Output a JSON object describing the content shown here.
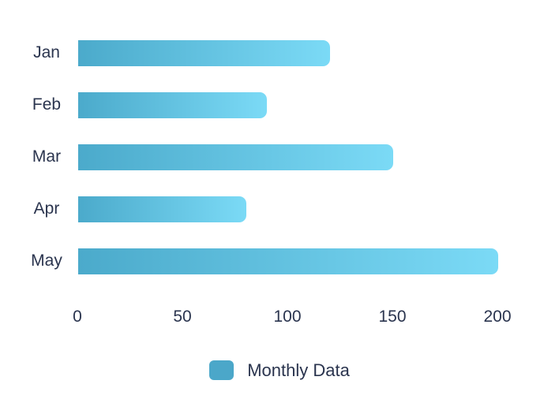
{
  "chart_data": {
    "type": "bar",
    "orientation": "horizontal",
    "categories": [
      "Jan",
      "Feb",
      "Mar",
      "Apr",
      "May"
    ],
    "values": [
      120,
      90,
      150,
      80,
      200
    ],
    "series_name": "Monthly Data",
    "title": "",
    "xlabel": "",
    "ylabel": "",
    "xlim": [
      0,
      200
    ],
    "x_ticks": [
      "0",
      "50",
      "100",
      "150",
      "200"
    ],
    "x_tick_values": [
      0,
      50,
      100,
      150,
      200
    ],
    "grid": false,
    "legend_position": "bottom",
    "colors": {
      "bar_gradient_start": "#4BAACB",
      "bar_gradient_end": "#7BDAF6",
      "legend_swatch": "#4BA7C9",
      "text": "#2A344E",
      "background": "#FFFFFF"
    }
  }
}
